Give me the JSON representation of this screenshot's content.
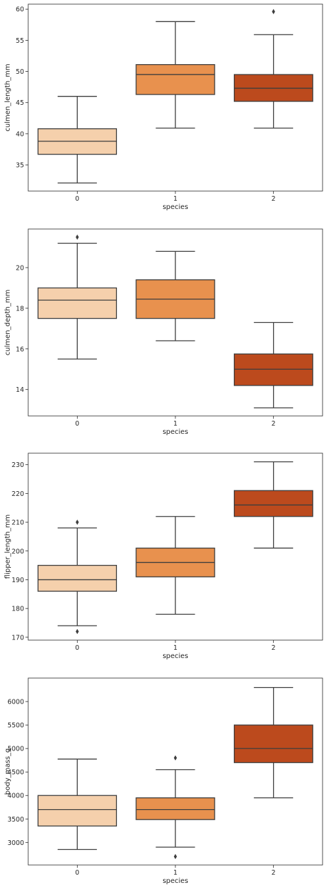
{
  "chart_data": [
    {
      "type": "box",
      "title": "",
      "xlabel": "species",
      "ylabel": "culmen_length_mm",
      "categories": [
        "0",
        "1",
        "2"
      ],
      "ylim": [
        30.8,
        60.8
      ],
      "yticks": [
        35,
        40,
        45,
        50,
        55,
        60
      ],
      "boxes": [
        {
          "category": "0",
          "whisker_low": 32.1,
          "q1": 36.7,
          "median": 38.8,
          "q3": 40.8,
          "whisker_high": 46.0,
          "outliers": []
        },
        {
          "category": "1",
          "whisker_low": 40.9,
          "q1": 46.3,
          "median": 49.5,
          "q3": 51.1,
          "whisker_high": 58.0,
          "outliers": []
        },
        {
          "category": "2",
          "whisker_low": 40.9,
          "q1": 45.2,
          "median": 47.3,
          "q3": 49.5,
          "whisker_high": 55.9,
          "outliers": [
            59.6
          ]
        }
      ]
    },
    {
      "type": "box",
      "title": "",
      "xlabel": "species",
      "ylabel": "culmen_depth_mm",
      "categories": [
        "0",
        "1",
        "2"
      ],
      "ylim": [
        12.7,
        21.9
      ],
      "yticks": [
        14,
        16,
        18,
        20
      ],
      "boxes": [
        {
          "category": "0",
          "whisker_low": 15.5,
          "q1": 17.5,
          "median": 18.4,
          "q3": 19.0,
          "whisker_high": 21.2,
          "outliers": [
            21.5
          ]
        },
        {
          "category": "1",
          "whisker_low": 16.4,
          "q1": 17.5,
          "median": 18.45,
          "q3": 19.4,
          "whisker_high": 20.8,
          "outliers": []
        },
        {
          "category": "2",
          "whisker_low": 13.1,
          "q1": 14.2,
          "median": 15.0,
          "q3": 15.75,
          "whisker_high": 17.3,
          "outliers": []
        }
      ]
    },
    {
      "type": "box",
      "title": "",
      "xlabel": "species",
      "ylabel": "flipper_length_mm",
      "categories": [
        "0",
        "1",
        "2"
      ],
      "ylim": [
        169.0,
        234.0
      ],
      "yticks": [
        170,
        180,
        190,
        200,
        210,
        220,
        230
      ],
      "boxes": [
        {
          "category": "0",
          "whisker_low": 174,
          "q1": 186,
          "median": 190,
          "q3": 195,
          "whisker_high": 208,
          "outliers": [
            210,
            172
          ]
        },
        {
          "category": "1",
          "whisker_low": 178,
          "q1": 191,
          "median": 196,
          "q3": 201,
          "whisker_high": 212,
          "outliers": []
        },
        {
          "category": "2",
          "whisker_low": 201,
          "q1": 212,
          "median": 216,
          "q3": 221,
          "whisker_high": 231,
          "outliers": []
        }
      ]
    },
    {
      "type": "box",
      "title": "",
      "xlabel": "species",
      "ylabel": "body_mass_g",
      "categories": [
        "0",
        "1",
        "2"
      ],
      "ylim": [
        2520,
        6500
      ],
      "yticks": [
        3000,
        3500,
        4000,
        4500,
        5000,
        5500,
        6000
      ],
      "boxes": [
        {
          "category": "0",
          "whisker_low": 2850,
          "q1": 3350,
          "median": 3700,
          "q3": 4000,
          "whisker_high": 4775,
          "outliers": []
        },
        {
          "category": "1",
          "whisker_low": 2900,
          "q1": 3487,
          "median": 3700,
          "q3": 3950,
          "whisker_high": 4550,
          "outliers": [
            4800,
            2700
          ]
        },
        {
          "category": "2",
          "whisker_low": 3950,
          "q1": 4700,
          "median": 5000,
          "q3": 5500,
          "whisker_high": 6300,
          "outliers": []
        }
      ]
    }
  ],
  "colors": {
    "box_fill": [
      "#f5d0ac",
      "#e8914e",
      "#bc4a1d"
    ],
    "line": "#3d3d3d",
    "axis": "#262626"
  }
}
